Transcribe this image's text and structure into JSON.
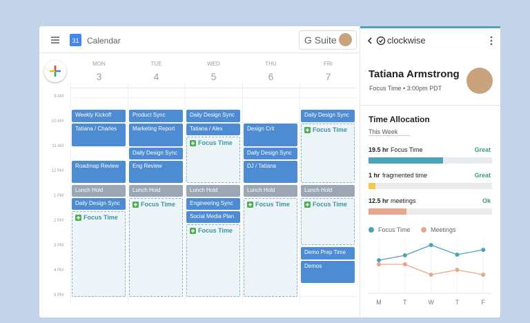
{
  "header": {
    "app": "Calendar",
    "icon_day": "31",
    "suite": "G Suite"
  },
  "days": [
    {
      "name": "MON",
      "date": "3",
      "events": [
        "Weekly Kickoff",
        "Tatiana / Charles",
        "Roadmap Review",
        "Lunch Hold",
        "Daily Design Sync",
        "Focus Time"
      ]
    },
    {
      "name": "TUE",
      "date": "4",
      "events": [
        "Product Sync",
        "Marketing Report",
        "Daily Design Sync",
        "Eng Review",
        "Lunch Hold",
        "Focus Time"
      ]
    },
    {
      "name": "WED",
      "date": "5",
      "events": [
        "Daily Design Sync",
        "Tatiana / Alex",
        "Focus Time",
        "Lunch Hold",
        "Engineering Sync",
        "Social Media Plan",
        "Focus Time"
      ]
    },
    {
      "name": "THU",
      "date": "6",
      "events": [
        "Design Crit",
        "Daily Design Sync",
        "DJ / Tatiana",
        "Lunch Hold",
        "Focus Time"
      ]
    },
    {
      "name": "FRI",
      "date": "7",
      "events": [
        "Daily Design Sync",
        "Focus Time",
        "Lunch Hold",
        "Focus Time",
        "Demo Prep Time",
        "Demos"
      ]
    }
  ],
  "times": [
    "9 AM",
    "10 AM",
    "11 AM",
    "12 PM",
    "1 PM",
    "2 PM",
    "3 PM",
    "4 PM",
    "5 PM"
  ],
  "sidebar": {
    "brand": "clockwise",
    "name": "Tatiana Armstrong",
    "status": "Focus Time • 3:00pm PDT",
    "section": "Time Allocation",
    "period": "This Week",
    "metrics": [
      {
        "hours": "19.5 hr",
        "label": "Focus Time",
        "rating": "Great"
      },
      {
        "hours": "1 hr",
        "label": "fragmented time",
        "rating": "Great"
      },
      {
        "hours": "12.5 hr",
        "label": "meetings",
        "rating": "Ok"
      }
    ],
    "chart": {
      "type": "line",
      "categories": [
        "M",
        "T",
        "W",
        "T",
        "F"
      ],
      "series": [
        {
          "name": "Focus Time",
          "color": "#4aa3b8",
          "values": [
            3.3,
            4.0,
            5.5,
            4.1,
            4.8
          ]
        },
        {
          "name": "Meetings",
          "color": "#e9a68c",
          "values": [
            2.7,
            2.7,
            1.2,
            1.9,
            1.2
          ]
        }
      ]
    }
  }
}
